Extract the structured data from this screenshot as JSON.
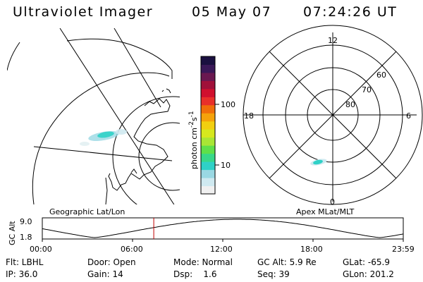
{
  "header": {
    "title": "Ultraviolet Imager",
    "date": "05 May 07",
    "time": "07:24:26 UT"
  },
  "colorbar": {
    "unit": "photon cm",
    "exp1": "-2",
    "mid": "s",
    "exp2": "-1",
    "ticks": [
      "100",
      "10"
    ],
    "colors": [
      "#f0f0f0",
      "#cfe9f0",
      "#9ad8e3",
      "#2fd1c7",
      "#38d889",
      "#5fe04a",
      "#a8e635",
      "#d6e81e",
      "#f2cf10",
      "#f5a20a",
      "#f06e0a",
      "#e8302a",
      "#d0102e",
      "#a0103a",
      "#6a1850",
      "#3a1858",
      "#1a1040"
    ]
  },
  "geo_panel": {
    "label": "Geographic Lat/Lon"
  },
  "polar_panel": {
    "label": "Apex MLat/MLT",
    "mlt_labels": {
      "top": "12",
      "left": "18",
      "right": "6",
      "bottom": "0"
    },
    "mlat_labels": [
      "60",
      "70",
      "80"
    ]
  },
  "timeline": {
    "ylabel": "GC Alt",
    "ytick_top": "9.0",
    "ytick_bottom": "1.8",
    "xticks": [
      "00:00",
      "06:00",
      "12:00",
      "18:00",
      "23:59"
    ],
    "current_fraction": 0.3087
  },
  "info": {
    "row1": {
      "flt": "Flt: LBHL",
      "door": "Door: Open",
      "mode": "Mode: Normal",
      "gcalt": "GC Alt: 5.9 Re",
      "glat": "GLat: -65.9"
    },
    "row2": {
      "ip": "IP: 36.0",
      "gain": "Gain: 14",
      "dsp": "Dsp:    1.6",
      "seq": "Seq: 39",
      "glon": "GLon: 201.2"
    }
  }
}
